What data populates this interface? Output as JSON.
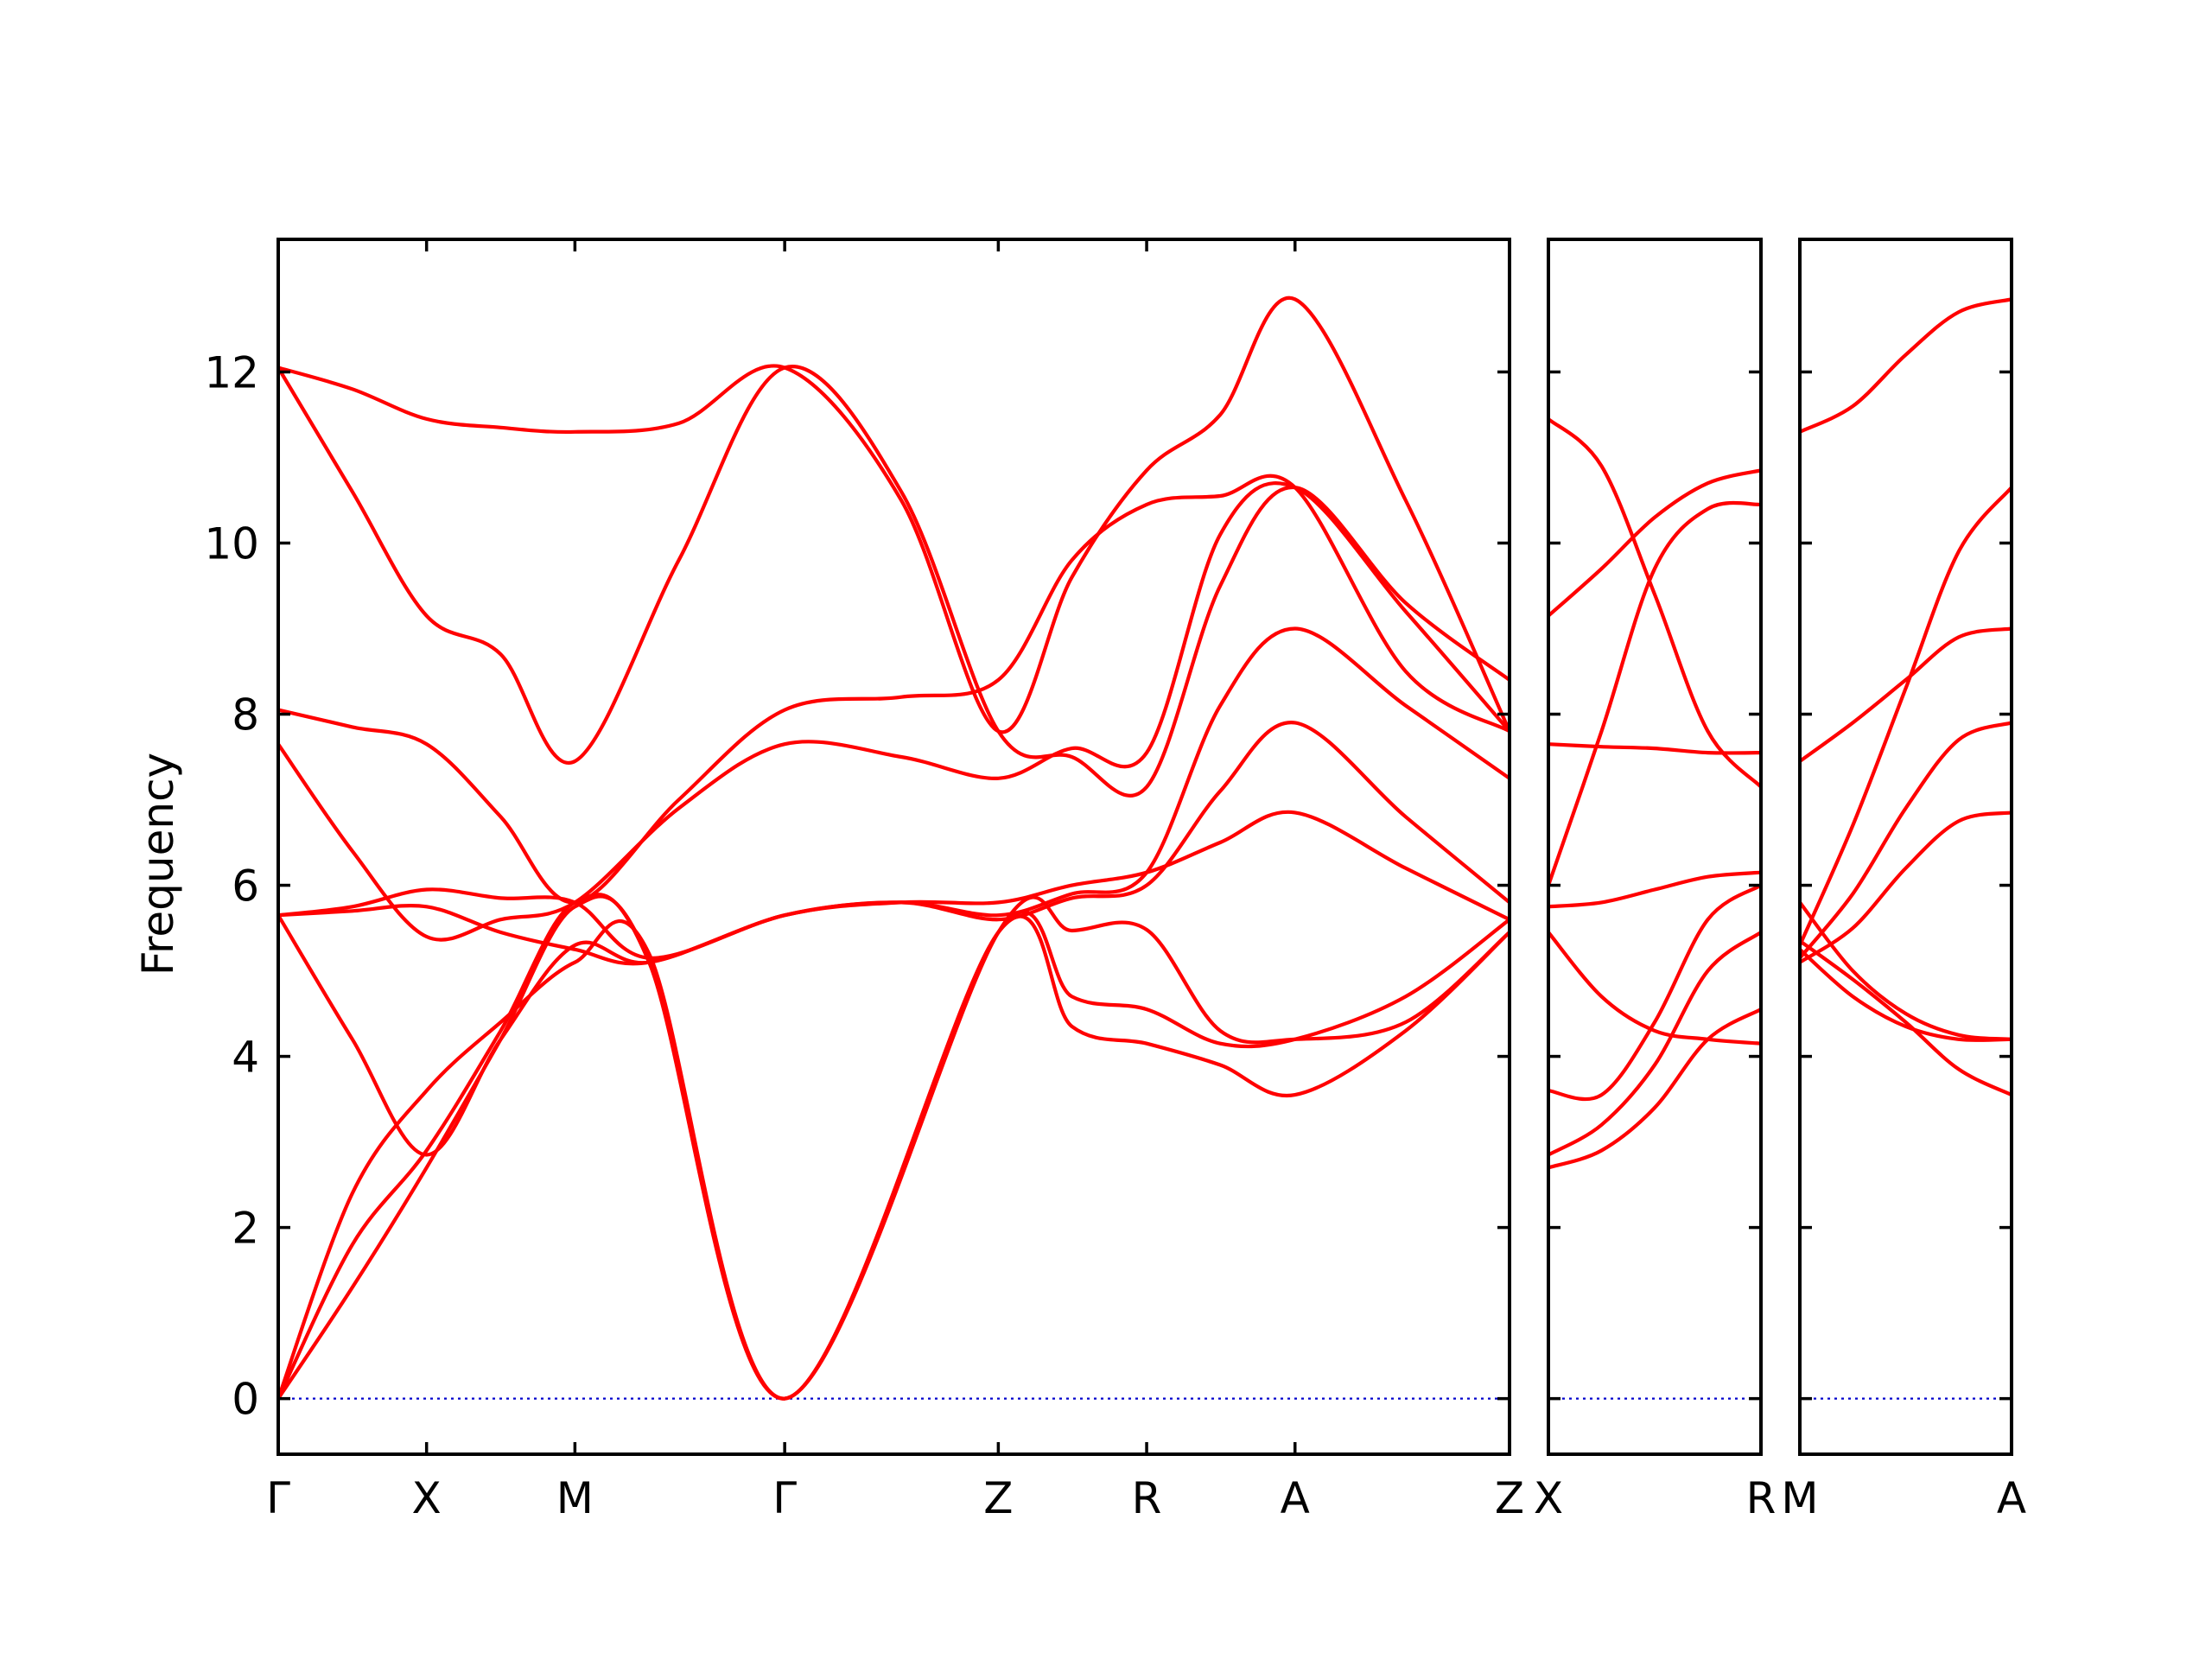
{
  "chart_data": {
    "type": "line",
    "title": "",
    "xlabel": "",
    "ylabel": "Frequency",
    "ylim": [
      -0.65,
      13.55
    ],
    "yticks": [
      0,
      2,
      4,
      6,
      8,
      10,
      12
    ],
    "grid": false,
    "legend": "none",
    "colors": {
      "bands": "#ff0000",
      "zero_line": "#0000cc",
      "frame": "#000000"
    },
    "panels": [
      {
        "name": "main-panel",
        "xlim": [
          0,
          8.3
        ],
        "points": [
          {
            "label": "Γ",
            "x": 0
          },
          {
            "label": "X",
            "x": 1.0
          },
          {
            "label": "M",
            "x": 2.0
          },
          {
            "label": "Γ",
            "x": 3.414
          },
          {
            "label": "Z",
            "x": 4.854
          },
          {
            "label": "R",
            "x": 5.854
          },
          {
            "label": "A",
            "x": 6.854
          },
          {
            "label": "Z",
            "x": 8.3
          }
        ],
        "bands": [
          [
            [
              0,
              0
            ],
            [
              0.5,
              1.3
            ],
            [
              1.0,
              2.7
            ],
            [
              1.5,
              4.2
            ],
            [
              2.0,
              5.75
            ],
            [
              2.5,
              5.12
            ],
            [
              3.414,
              0
            ],
            [
              4.854,
              5.45
            ],
            [
              5.35,
              5.47
            ],
            [
              5.854,
              5.48
            ],
            [
              6.35,
              4.3
            ],
            [
              6.854,
              4.2
            ],
            [
              7.6,
              4.4
            ],
            [
              8.3,
              5.45
            ]
          ],
          [
            [
              0,
              0
            ],
            [
              0.5,
              1.8
            ],
            [
              1.0,
              2.9
            ],
            [
              1.5,
              4.3
            ],
            [
              2.0,
              5.8
            ],
            [
              2.5,
              5.1
            ],
            [
              3.414,
              0
            ],
            [
              4.854,
              5.45
            ],
            [
              5.35,
              4.7
            ],
            [
              5.854,
              4.55
            ],
            [
              6.35,
              4.15
            ],
            [
              6.854,
              4.2
            ],
            [
              7.6,
              4.7
            ],
            [
              8.3,
              5.6
            ]
          ],
          [
            [
              0,
              0
            ],
            [
              0.5,
              2.4
            ],
            [
              1.0,
              3.6
            ],
            [
              1.5,
              4.4
            ],
            [
              2.0,
              5.1
            ],
            [
              2.5,
              5.2
            ],
            [
              3.414,
              0
            ],
            [
              4.854,
              5.45
            ],
            [
              5.35,
              4.35
            ],
            [
              5.854,
              4.15
            ],
            [
              6.35,
              3.9
            ],
            [
              6.854,
              3.55
            ],
            [
              7.6,
              4.3
            ],
            [
              8.3,
              5.45
            ]
          ],
          [
            [
              0,
              5.65
            ],
            [
              0.5,
              4.2
            ],
            [
              1.0,
              2.85
            ],
            [
              1.5,
              4.2
            ],
            [
              2.0,
              5.3
            ],
            [
              2.5,
              5.1
            ],
            [
              3.414,
              5.65
            ],
            [
              4.2,
              5.8
            ],
            [
              4.854,
              5.8
            ],
            [
              5.35,
              6.0
            ],
            [
              5.854,
              6.15
            ],
            [
              6.35,
              6.5
            ],
            [
              6.854,
              6.85
            ],
            [
              7.6,
              6.2
            ],
            [
              8.3,
              5.6
            ]
          ],
          [
            [
              0,
              5.65
            ],
            [
              0.5,
              5.75
            ],
            [
              1.0,
              5.95
            ],
            [
              1.5,
              5.85
            ],
            [
              2.0,
              5.8
            ],
            [
              2.5,
              5.15
            ],
            [
              3.414,
              5.65
            ],
            [
              4.2,
              5.8
            ],
            [
              4.854,
              5.6
            ],
            [
              5.35,
              5.85
            ],
            [
              5.854,
              6.0
            ],
            [
              6.35,
              7.1
            ],
            [
              6.854,
              7.9
            ],
            [
              7.6,
              6.8
            ],
            [
              8.3,
              5.8
            ]
          ],
          [
            [
              0,
              5.65
            ],
            [
              0.5,
              5.7
            ],
            [
              1.0,
              5.75
            ],
            [
              1.5,
              5.45
            ],
            [
              2.0,
              5.25
            ],
            [
              2.5,
              5.1
            ],
            [
              3.414,
              5.65
            ],
            [
              4.2,
              5.8
            ],
            [
              4.854,
              5.65
            ],
            [
              5.35,
              5.9
            ],
            [
              5.854,
              6.15
            ],
            [
              6.35,
              8.1
            ],
            [
              6.854,
              9.0
            ],
            [
              7.6,
              8.1
            ],
            [
              8.3,
              7.25
            ]
          ],
          [
            [
              0,
              7.65
            ],
            [
              0.5,
              6.4
            ],
            [
              1.0,
              5.4
            ],
            [
              1.5,
              5.6
            ],
            [
              2.0,
              5.8
            ],
            [
              2.7,
              6.9
            ],
            [
              3.414,
              7.65
            ],
            [
              4.2,
              7.5
            ],
            [
              4.854,
              7.25
            ],
            [
              5.35,
              7.6
            ],
            [
              5.854,
              7.55
            ],
            [
              6.35,
              10.1
            ],
            [
              6.854,
              10.65
            ],
            [
              7.6,
              9.2
            ],
            [
              8.3,
              7.8
            ]
          ],
          [
            [
              0,
              8.05
            ],
            [
              0.5,
              7.85
            ],
            [
              1.0,
              7.65
            ],
            [
              1.5,
              6.8
            ],
            [
              2.0,
              5.8
            ],
            [
              2.7,
              7.0
            ],
            [
              3.414,
              8.05
            ],
            [
              4.2,
              8.2
            ],
            [
              4.854,
              8.4
            ],
            [
              5.35,
              9.8
            ],
            [
              5.854,
              10.45
            ],
            [
              6.35,
              10.55
            ],
            [
              6.854,
              10.65
            ],
            [
              7.6,
              8.5
            ],
            [
              8.3,
              7.8
            ]
          ],
          [
            [
              0,
              12.05
            ],
            [
              0.5,
              10.6
            ],
            [
              1.0,
              9.15
            ],
            [
              1.5,
              8.7
            ],
            [
              2.0,
              7.45
            ],
            [
              2.7,
              9.8
            ],
            [
              3.414,
              12.05
            ],
            [
              4.2,
              10.6
            ],
            [
              4.854,
              7.8
            ],
            [
              5.35,
              7.5
            ],
            [
              5.854,
              7.15
            ],
            [
              6.35,
              9.5
            ],
            [
              6.854,
              10.65
            ],
            [
              7.6,
              9.3
            ],
            [
              8.3,
              8.4
            ]
          ],
          [
            [
              0,
              12.05
            ],
            [
              0.5,
              11.8
            ],
            [
              1.0,
              11.45
            ],
            [
              1.5,
              11.35
            ],
            [
              2.0,
              11.3
            ],
            [
              2.7,
              11.4
            ],
            [
              3.414,
              12.05
            ],
            [
              4.2,
              10.5
            ],
            [
              4.854,
              7.8
            ],
            [
              5.35,
              9.6
            ],
            [
              5.854,
              10.85
            ],
            [
              6.35,
              11.5
            ],
            [
              6.854,
              12.85
            ],
            [
              7.6,
              10.5
            ],
            [
              8.3,
              7.8
            ]
          ]
        ]
      },
      {
        "name": "x-r-panel",
        "xlim": [
          0,
          1
        ],
        "points": [
          {
            "label": "X",
            "x": 0
          },
          {
            "label": "R",
            "x": 1
          }
        ],
        "bands": [
          [
            [
              0,
              2.7
            ],
            [
              0.25,
              2.9
            ],
            [
              0.5,
              3.4
            ],
            [
              0.75,
              4.2
            ],
            [
              1,
              4.55
            ]
          ],
          [
            [
              0,
              2.85
            ],
            [
              0.25,
              3.2
            ],
            [
              0.5,
              3.9
            ],
            [
              0.75,
              5.0
            ],
            [
              1,
              5.45
            ]
          ],
          [
            [
              0,
              3.6
            ],
            [
              0.25,
              3.55
            ],
            [
              0.5,
              4.4
            ],
            [
              0.75,
              5.6
            ],
            [
              1,
              6.0
            ]
          ],
          [
            [
              0,
              5.45
            ],
            [
              0.25,
              4.7
            ],
            [
              0.5,
              4.3
            ],
            [
              0.75,
              4.2
            ],
            [
              1,
              4.15
            ]
          ],
          [
            [
              0,
              5.75
            ],
            [
              0.25,
              5.8
            ],
            [
              0.5,
              5.95
            ],
            [
              0.75,
              6.1
            ],
            [
              1,
              6.15
            ]
          ],
          [
            [
              0,
              6.0
            ],
            [
              0.25,
              7.8
            ],
            [
              0.5,
              9.7
            ],
            [
              0.75,
              10.4
            ],
            [
              1,
              10.45
            ]
          ],
          [
            [
              0,
              7.65
            ],
            [
              0.25,
              7.62
            ],
            [
              0.5,
              7.6
            ],
            [
              0.75,
              7.55
            ],
            [
              1,
              7.55
            ]
          ],
          [
            [
              0,
              9.15
            ],
            [
              0.25,
              9.7
            ],
            [
              0.5,
              10.3
            ],
            [
              0.75,
              10.7
            ],
            [
              1,
              10.85
            ]
          ],
          [
            [
              0,
              11.45
            ],
            [
              0.25,
              10.9
            ],
            [
              0.5,
              9.4
            ],
            [
              0.75,
              7.8
            ],
            [
              1,
              7.15
            ]
          ]
        ]
      },
      {
        "name": "m-a-panel",
        "xlim": [
          0,
          1
        ],
        "points": [
          {
            "label": "M",
            "x": 0
          },
          {
            "label": "A",
            "x": 1
          }
        ],
        "bands": [
          [
            [
              0,
              5.25
            ],
            [
              0.25,
              4.7
            ],
            [
              0.5,
              4.35
            ],
            [
              0.75,
              4.2
            ],
            [
              1,
              4.2
            ]
          ],
          [
            [
              0,
              5.35
            ],
            [
              0.25,
              4.9
            ],
            [
              0.5,
              4.4
            ],
            [
              0.75,
              3.85
            ],
            [
              1,
              3.55
            ]
          ],
          [
            [
              0,
              5.1
            ],
            [
              0.25,
              5.5
            ],
            [
              0.5,
              6.2
            ],
            [
              0.75,
              6.75
            ],
            [
              1,
              6.85
            ]
          ],
          [
            [
              0,
              5.15
            ],
            [
              0.25,
              5.9
            ],
            [
              0.5,
              6.9
            ],
            [
              0.75,
              7.7
            ],
            [
              1,
              7.9
            ]
          ],
          [
            [
              0,
              5.3
            ],
            [
              0.25,
              6.7
            ],
            [
              0.5,
              8.3
            ],
            [
              0.75,
              9.9
            ],
            [
              1,
              10.65
            ]
          ],
          [
            [
              0,
              5.8
            ],
            [
              0.25,
              5.0
            ],
            [
              0.5,
              4.5
            ],
            [
              0.75,
              4.25
            ],
            [
              1,
              4.2
            ]
          ],
          [
            [
              0,
              7.45
            ],
            [
              0.25,
              7.9
            ],
            [
              0.5,
              8.4
            ],
            [
              0.75,
              8.9
            ],
            [
              1,
              9.0
            ]
          ],
          [
            [
              0,
              11.3
            ],
            [
              0.25,
              11.6
            ],
            [
              0.5,
              12.2
            ],
            [
              0.75,
              12.7
            ],
            [
              1,
              12.85
            ]
          ]
        ]
      }
    ]
  }
}
